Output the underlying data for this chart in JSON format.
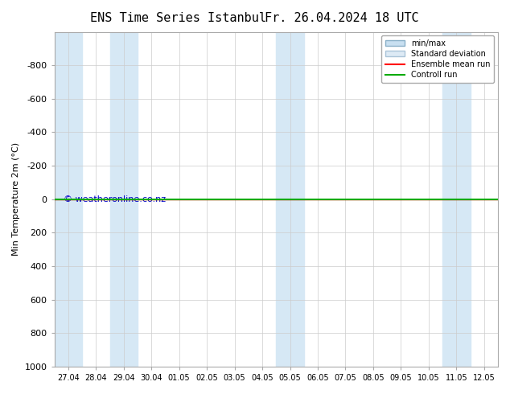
{
  "title": "ENS Time Series Istanbul",
  "title2": "Fr. 26.04.2024 18 UTC",
  "ylabel": "Min Temperature 2m (°C)",
  "ylim": [
    -1000,
    1000
  ],
  "yticks": [
    -800,
    -600,
    -400,
    -200,
    0,
    200,
    400,
    600,
    800,
    1000
  ],
  "xlim": [
    0,
    16
  ],
  "xtick_labels": [
    "27.04",
    "28.04",
    "29.04",
    "30.04",
    "01.05",
    "02.05",
    "03.05",
    "04.05",
    "05.05",
    "06.05",
    "07.05",
    "08.05",
    "09.05",
    "10.05",
    "11.05",
    "12.05"
  ],
  "shaded_columns": [
    0,
    2,
    8,
    14
  ],
  "shaded_color": "#d6e8f5",
  "background_color": "#ffffff",
  "plot_bg_color": "#ffffff",
  "control_run_color": "#00aa00",
  "ensemble_mean_color": "#ff0000",
  "control_run_y": 0,
  "ensemble_mean_y": 0,
  "watermark": "© weatheronline.co.nz",
  "watermark_color": "#0000cc",
  "legend_items": [
    "min/max",
    "Standard deviation",
    "Ensemble mean run",
    "Controll run"
  ],
  "minmax_color": "#b8d4e8",
  "stddev_color": "#d6e8f5"
}
